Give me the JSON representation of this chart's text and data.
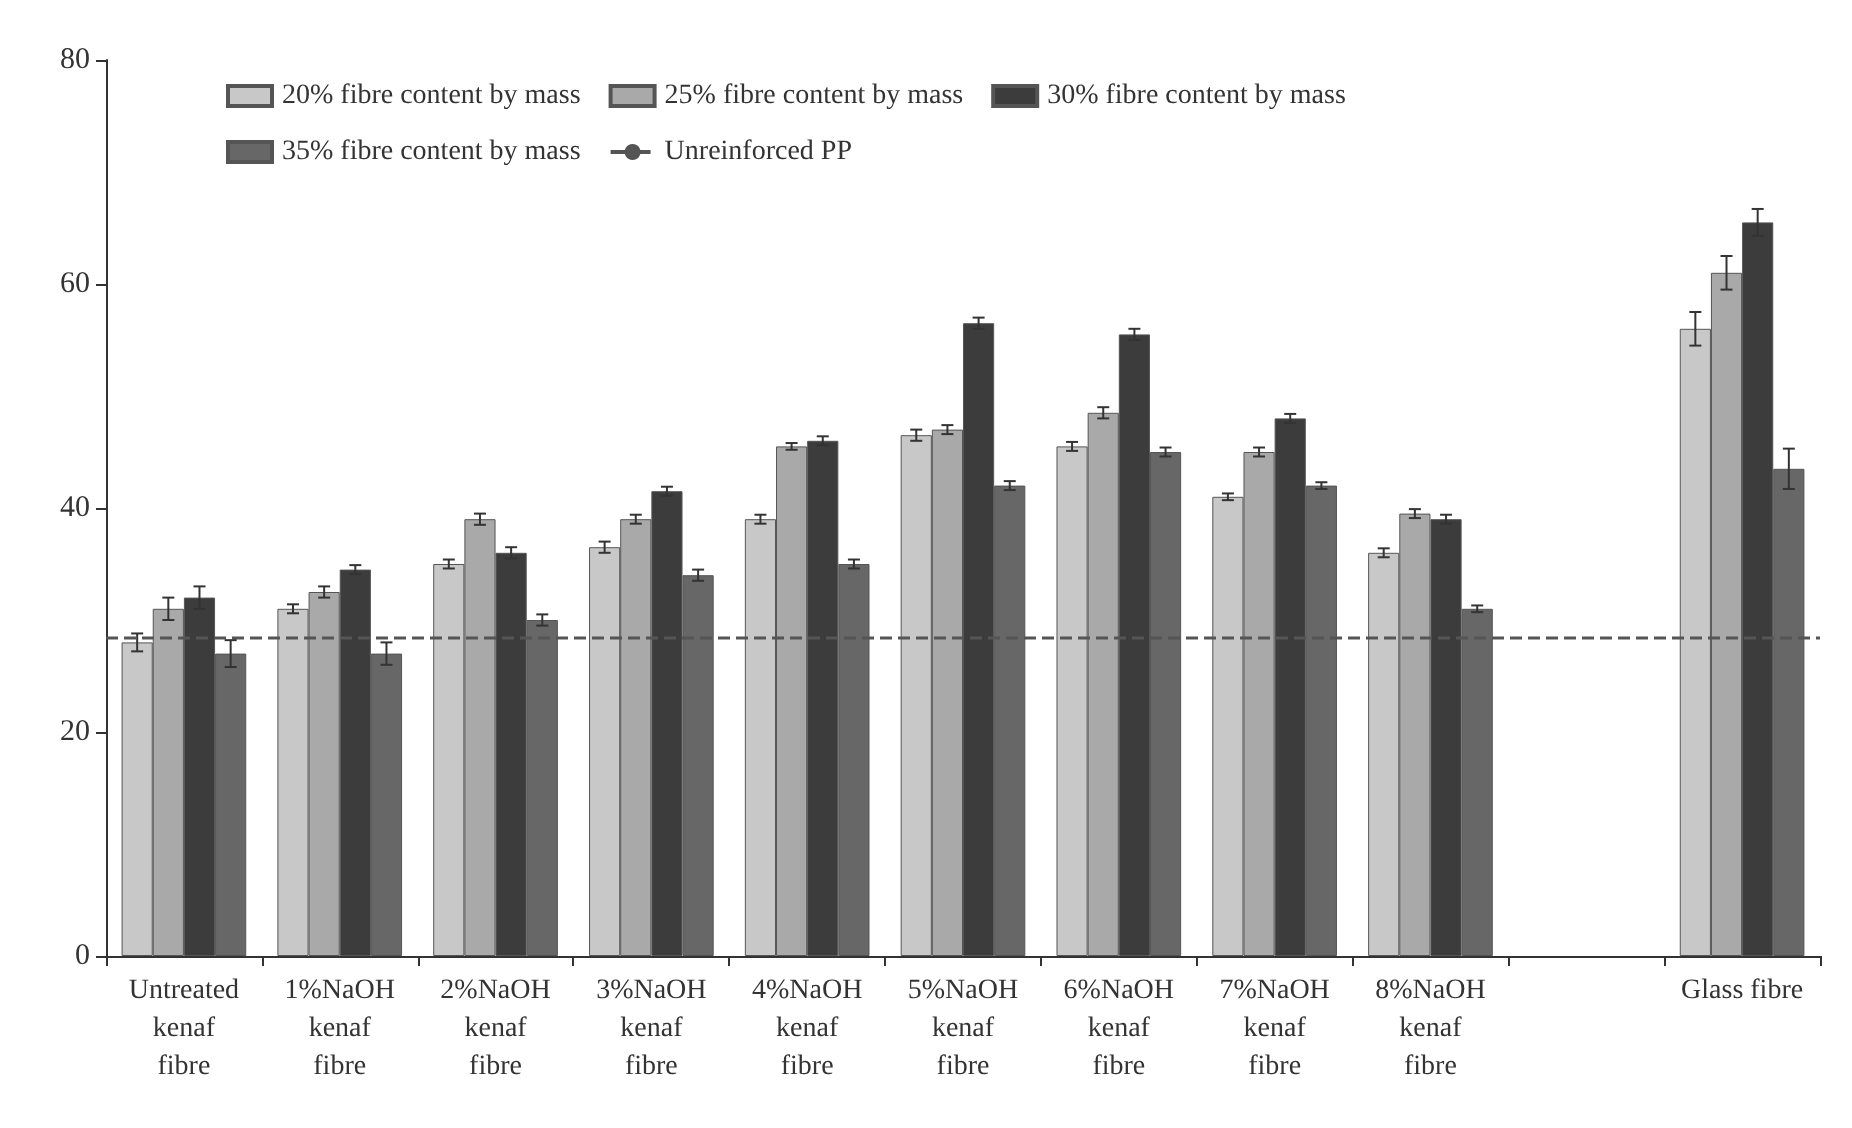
{
  "chart_data": {
    "type": "bar",
    "categories": [
      "Untreated\nkenaf\nfibre",
      "1%NaOH\nkenaf\nfibre",
      "2%NaOH\nkenaf\nfibre",
      "3%NaOH\nkenaf\nfibre",
      "4%NaOH\nkenaf\nfibre",
      "5%NaOH\nkenaf\nfibre",
      "6%NaOH\nkenaf\nfibre",
      "7%NaOH\nkenaf\nfibre",
      "8%NaOH\nkenaf\nfibre",
      null,
      "Glass fibre"
    ],
    "series": [
      {
        "name": "20% fibre content by mass",
        "color": "#c8c8c8",
        "values": [
          28,
          31,
          35,
          36.5,
          39,
          46.5,
          45.5,
          41,
          36,
          null,
          56
        ],
        "errors": [
          0.8,
          0.4,
          0.4,
          0.5,
          0.4,
          0.5,
          0.4,
          0.3,
          0.4,
          null,
          1.5
        ]
      },
      {
        "name": "25% fibre content by mass",
        "color": "#a9a9a9",
        "values": [
          31,
          32.5,
          39,
          39,
          45.5,
          47,
          48.5,
          45,
          39.5,
          null,
          61
        ],
        "errors": [
          1,
          0.5,
          0.5,
          0.4,
          0.3,
          0.4,
          0.5,
          0.4,
          0.4,
          null,
          1.5
        ]
      },
      {
        "name": "30% fibre content by mass",
        "color": "#3c3c3c",
        "values": [
          32,
          34.5,
          36,
          41.5,
          46,
          56.5,
          55.5,
          48,
          39,
          null,
          65.5
        ],
        "errors": [
          1,
          0.4,
          0.5,
          0.4,
          0.4,
          0.5,
          0.5,
          0.4,
          0.4,
          null,
          1.2
        ]
      },
      {
        "name": "35% fibre content by mass",
        "color": "#676767",
        "values": [
          27,
          27,
          30,
          34,
          35,
          42,
          45,
          42,
          31,
          null,
          43.5
        ],
        "errors": [
          1.2,
          1,
          0.5,
          0.5,
          0.4,
          0.4,
          0.4,
          0.3,
          0.3,
          null,
          1.8
        ]
      }
    ],
    "ylim": [
      0,
      80
    ],
    "yticks": [
      0,
      20,
      40,
      60,
      80
    ],
    "grid": false,
    "legend": "top left",
    "ref_lines": [
      {
        "axis": "y",
        "value": 28.5,
        "label": "Unreinforced PP",
        "color": "#555555",
        "line_style": "dashed"
      }
    ]
  }
}
